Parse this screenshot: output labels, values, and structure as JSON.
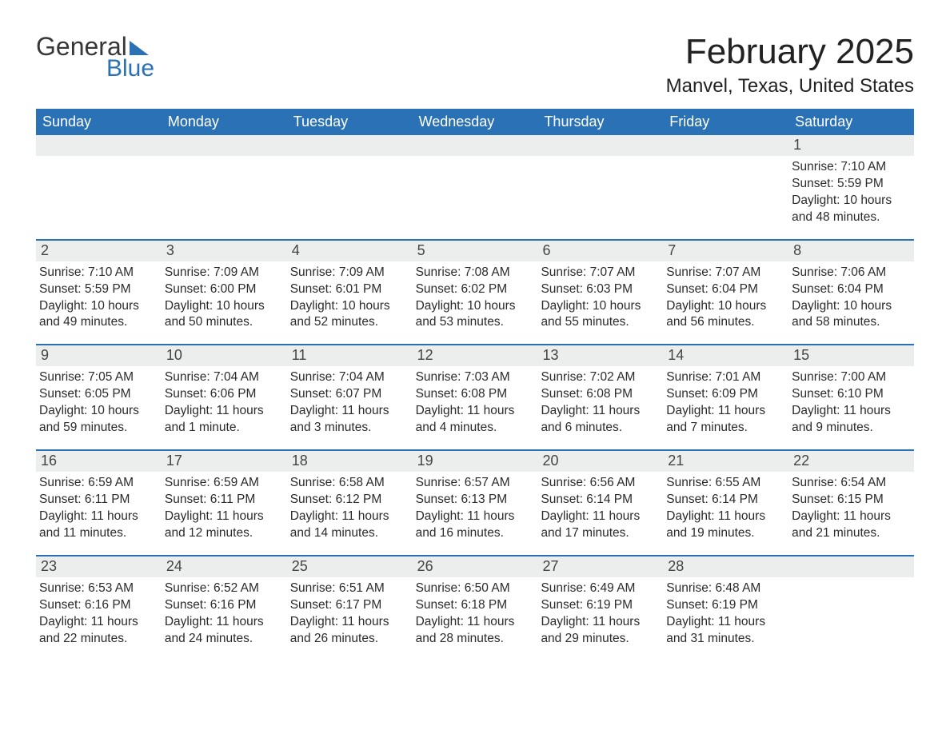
{
  "logo": {
    "text1": "General",
    "text2": "Blue"
  },
  "title": "February 2025",
  "location": "Manvel, Texas, United States",
  "colors": {
    "header_bg": "#2a72b5",
    "header_text": "#ffffff",
    "daynum_bg": "#eceded",
    "border": "#2a72b5",
    "body_text": "#2b2b2b"
  },
  "dow": [
    "Sunday",
    "Monday",
    "Tuesday",
    "Wednesday",
    "Thursday",
    "Friday",
    "Saturday"
  ],
  "weeks": [
    [
      {
        "n": "",
        "sr": "",
        "ss": "",
        "dl": ""
      },
      {
        "n": "",
        "sr": "",
        "ss": "",
        "dl": ""
      },
      {
        "n": "",
        "sr": "",
        "ss": "",
        "dl": ""
      },
      {
        "n": "",
        "sr": "",
        "ss": "",
        "dl": ""
      },
      {
        "n": "",
        "sr": "",
        "ss": "",
        "dl": ""
      },
      {
        "n": "",
        "sr": "",
        "ss": "",
        "dl": ""
      },
      {
        "n": "1",
        "sr": "Sunrise: 7:10 AM",
        "ss": "Sunset: 5:59 PM",
        "dl": "Daylight: 10 hours and 48 minutes."
      }
    ],
    [
      {
        "n": "2",
        "sr": "Sunrise: 7:10 AM",
        "ss": "Sunset: 5:59 PM",
        "dl": "Daylight: 10 hours and 49 minutes."
      },
      {
        "n": "3",
        "sr": "Sunrise: 7:09 AM",
        "ss": "Sunset: 6:00 PM",
        "dl": "Daylight: 10 hours and 50 minutes."
      },
      {
        "n": "4",
        "sr": "Sunrise: 7:09 AM",
        "ss": "Sunset: 6:01 PM",
        "dl": "Daylight: 10 hours and 52 minutes."
      },
      {
        "n": "5",
        "sr": "Sunrise: 7:08 AM",
        "ss": "Sunset: 6:02 PM",
        "dl": "Daylight: 10 hours and 53 minutes."
      },
      {
        "n": "6",
        "sr": "Sunrise: 7:07 AM",
        "ss": "Sunset: 6:03 PM",
        "dl": "Daylight: 10 hours and 55 minutes."
      },
      {
        "n": "7",
        "sr": "Sunrise: 7:07 AM",
        "ss": "Sunset: 6:04 PM",
        "dl": "Daylight: 10 hours and 56 minutes."
      },
      {
        "n": "8",
        "sr": "Sunrise: 7:06 AM",
        "ss": "Sunset: 6:04 PM",
        "dl": "Daylight: 10 hours and 58 minutes."
      }
    ],
    [
      {
        "n": "9",
        "sr": "Sunrise: 7:05 AM",
        "ss": "Sunset: 6:05 PM",
        "dl": "Daylight: 10 hours and 59 minutes."
      },
      {
        "n": "10",
        "sr": "Sunrise: 7:04 AM",
        "ss": "Sunset: 6:06 PM",
        "dl": "Daylight: 11 hours and 1 minute."
      },
      {
        "n": "11",
        "sr": "Sunrise: 7:04 AM",
        "ss": "Sunset: 6:07 PM",
        "dl": "Daylight: 11 hours and 3 minutes."
      },
      {
        "n": "12",
        "sr": "Sunrise: 7:03 AM",
        "ss": "Sunset: 6:08 PM",
        "dl": "Daylight: 11 hours and 4 minutes."
      },
      {
        "n": "13",
        "sr": "Sunrise: 7:02 AM",
        "ss": "Sunset: 6:08 PM",
        "dl": "Daylight: 11 hours and 6 minutes."
      },
      {
        "n": "14",
        "sr": "Sunrise: 7:01 AM",
        "ss": "Sunset: 6:09 PM",
        "dl": "Daylight: 11 hours and 7 minutes."
      },
      {
        "n": "15",
        "sr": "Sunrise: 7:00 AM",
        "ss": "Sunset: 6:10 PM",
        "dl": "Daylight: 11 hours and 9 minutes."
      }
    ],
    [
      {
        "n": "16",
        "sr": "Sunrise: 6:59 AM",
        "ss": "Sunset: 6:11 PM",
        "dl": "Daylight: 11 hours and 11 minutes."
      },
      {
        "n": "17",
        "sr": "Sunrise: 6:59 AM",
        "ss": "Sunset: 6:11 PM",
        "dl": "Daylight: 11 hours and 12 minutes."
      },
      {
        "n": "18",
        "sr": "Sunrise: 6:58 AM",
        "ss": "Sunset: 6:12 PM",
        "dl": "Daylight: 11 hours and 14 minutes."
      },
      {
        "n": "19",
        "sr": "Sunrise: 6:57 AM",
        "ss": "Sunset: 6:13 PM",
        "dl": "Daylight: 11 hours and 16 minutes."
      },
      {
        "n": "20",
        "sr": "Sunrise: 6:56 AM",
        "ss": "Sunset: 6:14 PM",
        "dl": "Daylight: 11 hours and 17 minutes."
      },
      {
        "n": "21",
        "sr": "Sunrise: 6:55 AM",
        "ss": "Sunset: 6:14 PM",
        "dl": "Daylight: 11 hours and 19 minutes."
      },
      {
        "n": "22",
        "sr": "Sunrise: 6:54 AM",
        "ss": "Sunset: 6:15 PM",
        "dl": "Daylight: 11 hours and 21 minutes."
      }
    ],
    [
      {
        "n": "23",
        "sr": "Sunrise: 6:53 AM",
        "ss": "Sunset: 6:16 PM",
        "dl": "Daylight: 11 hours and 22 minutes."
      },
      {
        "n": "24",
        "sr": "Sunrise: 6:52 AM",
        "ss": "Sunset: 6:16 PM",
        "dl": "Daylight: 11 hours and 24 minutes."
      },
      {
        "n": "25",
        "sr": "Sunrise: 6:51 AM",
        "ss": "Sunset: 6:17 PM",
        "dl": "Daylight: 11 hours and 26 minutes."
      },
      {
        "n": "26",
        "sr": "Sunrise: 6:50 AM",
        "ss": "Sunset: 6:18 PM",
        "dl": "Daylight: 11 hours and 28 minutes."
      },
      {
        "n": "27",
        "sr": "Sunrise: 6:49 AM",
        "ss": "Sunset: 6:19 PM",
        "dl": "Daylight: 11 hours and 29 minutes."
      },
      {
        "n": "28",
        "sr": "Sunrise: 6:48 AM",
        "ss": "Sunset: 6:19 PM",
        "dl": "Daylight: 11 hours and 31 minutes."
      },
      {
        "n": "",
        "sr": "",
        "ss": "",
        "dl": ""
      }
    ]
  ]
}
